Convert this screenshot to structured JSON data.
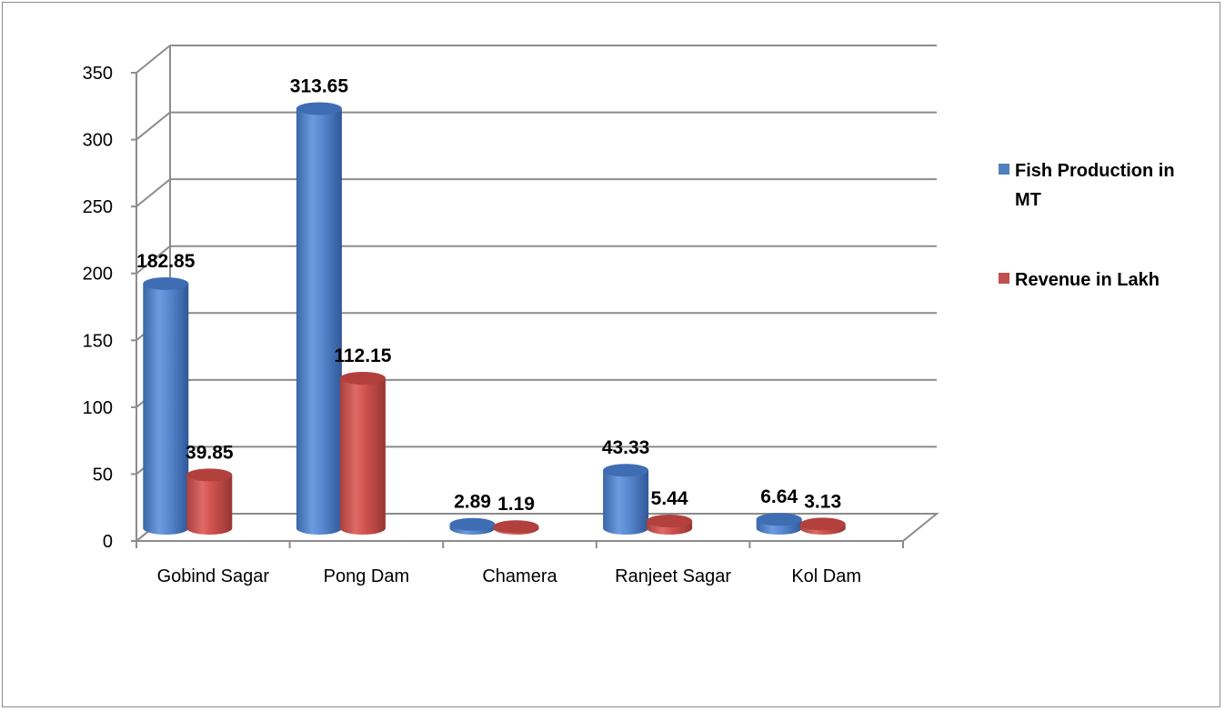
{
  "chart_data": {
    "type": "bar",
    "categories": [
      "Gobind Sagar",
      "Pong Dam",
      "Chamera",
      "Ranjeet Sagar",
      "Kol Dam"
    ],
    "series": [
      {
        "name": "Fish Production in MT",
        "values": [
          182.85,
          313.65,
          2.89,
          43.33,
          6.64
        ],
        "labels": [
          "182.85",
          "313.65",
          "2.89",
          "43.33",
          "6.64"
        ],
        "color": "#4F81BD"
      },
      {
        "name": "Revenue in Lakh",
        "values": [
          39.85,
          112.15,
          1.19,
          5.44,
          3.13
        ],
        "labels": [
          "39.85",
          "112.15",
          "1.19",
          "5.44",
          "3.13"
        ],
        "color": "#C0504D"
      }
    ],
    "ylim": [
      0,
      350
    ],
    "yticks": [
      "0",
      "50",
      "100",
      "150",
      "200",
      "250",
      "300",
      "350"
    ],
    "grid": true,
    "legend_position": "right",
    "style": "3d-cylinder"
  }
}
